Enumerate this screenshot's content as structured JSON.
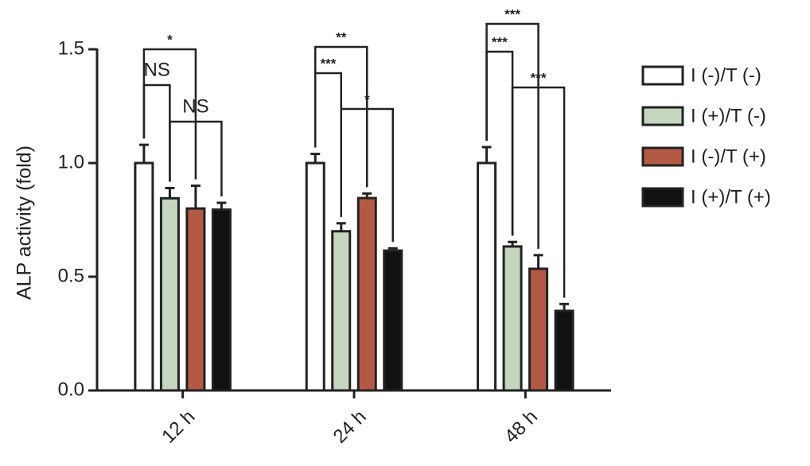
{
  "chart_data": {
    "type": "bar",
    "y_label": "ALP activity (fold)",
    "categories": [
      "12 h",
      "24 h",
      "48 h"
    ],
    "series": [
      {
        "name": "I (-)/T (-)",
        "color": "#ffffff",
        "values": [
          1.0,
          1.0,
          1.0
        ],
        "errors": [
          0.08,
          0.04,
          0.07
        ]
      },
      {
        "name": "I (+)/T (-)",
        "color": "#c4d6bd",
        "values": [
          0.845,
          0.7,
          0.633
        ],
        "errors": [
          0.045,
          0.035,
          0.02
        ]
      },
      {
        "name": "I (-)/T (+)",
        "color": "#b35a45",
        "values": [
          0.8,
          0.846,
          0.535
        ],
        "errors": [
          0.1,
          0.02,
          0.06
        ]
      },
      {
        "name": "I (+)/T (+)",
        "color": "#111111",
        "values": [
          0.795,
          0.615,
          0.35
        ],
        "errors": [
          0.03,
          0.01,
          0.03
        ]
      }
    ],
    "ylim": [
      0,
      1.5
    ],
    "yticks": [
      {
        "value": 0,
        "label": "0.0"
      },
      0.5,
      {
        "value": 1,
        "label": "1.0"
      },
      1.5
    ],
    "annotations": [
      "*",
      "NS",
      "NS",
      "**",
      "***",
      "*",
      "***",
      "***",
      "***"
    ],
    "legend": "right"
  }
}
